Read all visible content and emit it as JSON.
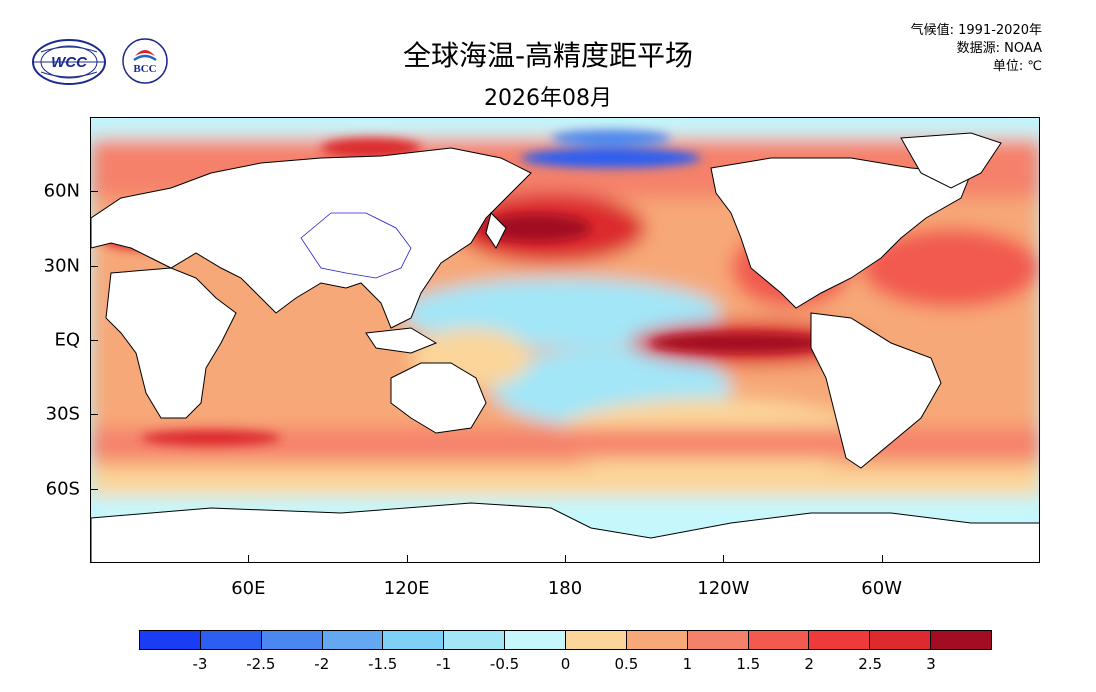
{
  "title": "全球海温-高精度距平场",
  "subtitle": "2026年08月",
  "meta": {
    "climatology": "气候值: 1991-2020年",
    "source": "数据源: NOAA",
    "unit": "单位: ℃"
  },
  "logos": {
    "wcc": "WCC",
    "bcc": "BCC"
  },
  "map": {
    "lat_labels": [
      "60N",
      "30N",
      "EQ",
      "30S",
      "60S"
    ],
    "lat_values": [
      60,
      30,
      0,
      -30,
      -60
    ],
    "lon_labels": [
      "60E",
      "120E",
      "180",
      "120W",
      "60W"
    ],
    "lon_values": [
      60,
      120,
      180,
      240,
      300
    ],
    "lon_range": [
      0,
      360
    ],
    "lat_range": [
      -90,
      90
    ]
  },
  "colorbar": {
    "colors": [
      "#1b3cf5",
      "#2c5ef2",
      "#4a87f0",
      "#64a8f2",
      "#7ed0f6",
      "#a2e6f8",
      "#c6f7fc",
      "#fbd59a",
      "#f7a878",
      "#f5816b",
      "#f25a50",
      "#ee3a3a",
      "#dc2a2e",
      "#a30d24"
    ],
    "labels": [
      "-3",
      "-2.5",
      "-2",
      "-1.5",
      "-1",
      "-0.5",
      "0",
      "0.5",
      "1",
      "1.5",
      "2",
      "2.5",
      "3"
    ]
  }
}
